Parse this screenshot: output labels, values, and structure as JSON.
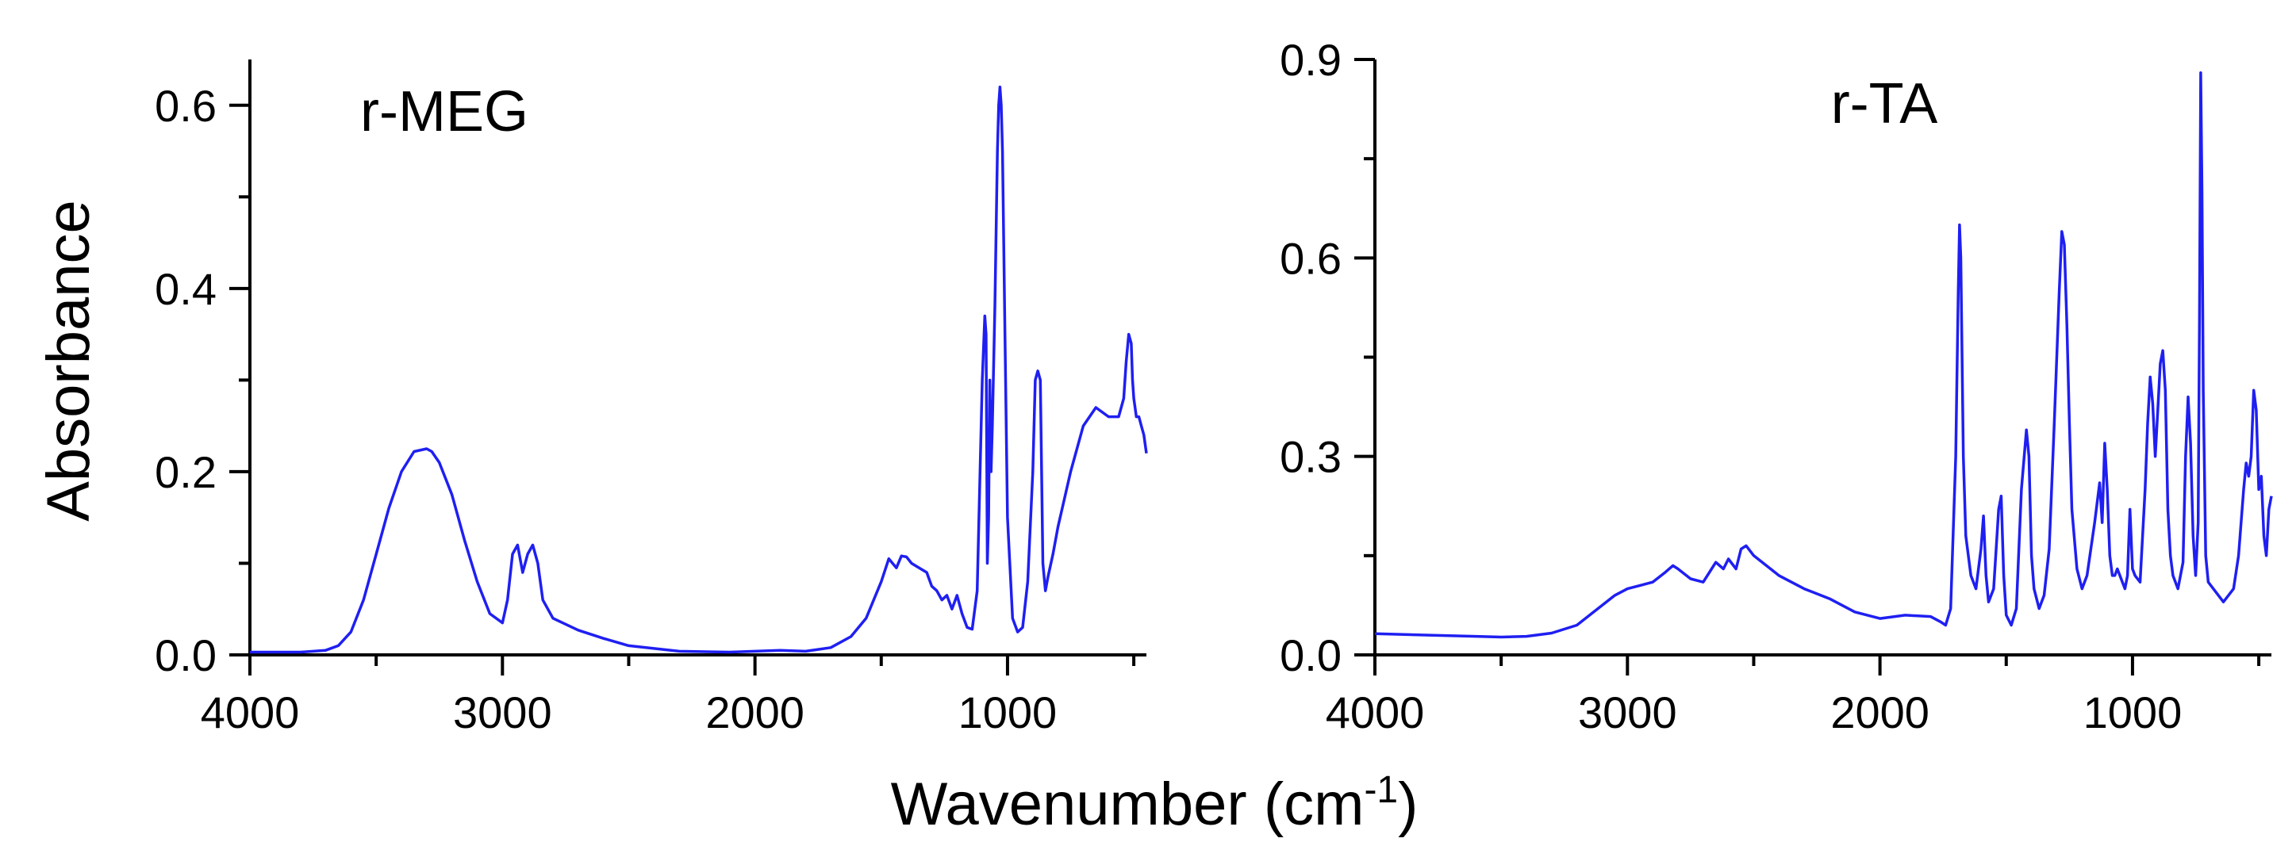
{
  "chart_data": [
    {
      "type": "line",
      "title": "r-MEG",
      "ylabel": "Absorbance",
      "xlim": [
        4000,
        450
      ],
      "ylim": [
        0,
        0.65
      ],
      "x_ticks": [
        4000,
        3000,
        2000,
        1000
      ],
      "y_ticks": [
        0.0,
        0.2,
        0.4,
        0.6
      ],
      "tick_labels_x": [
        "4000",
        "3000",
        "2000",
        "1000"
      ],
      "tick_labels_y": [
        "0.0",
        "0.2",
        "0.4",
        "0.6"
      ],
      "color": "#1f1ff2",
      "series": [
        {
          "x": [
            4000,
            3800,
            3700,
            3650,
            3600,
            3550,
            3500,
            3450,
            3400,
            3350,
            3300,
            3280,
            3250,
            3200,
            3150,
            3100,
            3050,
            3000,
            2980,
            2960,
            2940,
            2920,
            2900,
            2880,
            2860,
            2840,
            2800,
            2700,
            2600,
            2500,
            2300,
            2100,
            1900,
            1800,
            1700,
            1620,
            1560,
            1500,
            1470,
            1440,
            1420,
            1400,
            1380,
            1350,
            1320,
            1300,
            1280,
            1260,
            1240,
            1220,
            1200,
            1180,
            1160,
            1140,
            1120,
            1100,
            1090,
            1085,
            1080,
            1075,
            1070,
            1065,
            1060,
            1050,
            1040,
            1035,
            1030,
            1025,
            1020,
            1010,
            1000,
            980,
            960,
            940,
            920,
            900,
            890,
            880,
            870,
            865,
            860,
            850,
            840,
            820,
            800,
            750,
            700,
            650,
            600,
            560,
            540,
            530,
            520,
            510,
            505,
            500,
            495,
            490,
            480,
            470,
            460,
            450
          ],
          "y": [
            0.003,
            0.003,
            0.005,
            0.01,
            0.025,
            0.06,
            0.11,
            0.16,
            0.2,
            0.222,
            0.225,
            0.222,
            0.21,
            0.175,
            0.125,
            0.08,
            0.045,
            0.035,
            0.06,
            0.11,
            0.12,
            0.09,
            0.11,
            0.12,
            0.1,
            0.06,
            0.04,
            0.027,
            0.018,
            0.01,
            0.004,
            0.003,
            0.005,
            0.004,
            0.008,
            0.02,
            0.04,
            0.08,
            0.105,
            0.095,
            0.108,
            0.107,
            0.1,
            0.095,
            0.09,
            0.075,
            0.07,
            0.06,
            0.065,
            0.05,
            0.065,
            0.045,
            0.03,
            0.028,
            0.07,
            0.3,
            0.37,
            0.35,
            0.1,
            0.15,
            0.3,
            0.2,
            0.25,
            0.38,
            0.55,
            0.6,
            0.62,
            0.6,
            0.55,
            0.35,
            0.15,
            0.04,
            0.025,
            0.03,
            0.08,
            0.2,
            0.3,
            0.31,
            0.3,
            0.2,
            0.1,
            0.07,
            0.085,
            0.11,
            0.14,
            0.2,
            0.25,
            0.27,
            0.26,
            0.26,
            0.28,
            0.32,
            0.35,
            0.34,
            0.3,
            0.28,
            0.27,
            0.26,
            0.26,
            0.25,
            0.24,
            0.22
          ]
        }
      ]
    },
    {
      "type": "line",
      "title": "r-TA",
      "xlim": [
        4000,
        450
      ],
      "ylim": [
        0,
        0.9
      ],
      "x_ticks": [
        4000,
        3000,
        2000,
        1000
      ],
      "y_ticks": [
        0.0,
        0.3,
        0.6,
        0.9
      ],
      "tick_labels_x": [
        "4000",
        "3000",
        "2000",
        "1000"
      ],
      "tick_labels_y": [
        "0.0",
        "0.3",
        "0.6",
        "0.9"
      ],
      "color": "#1f1ff2",
      "series": [
        {
          "x": [
            4000,
            3800,
            3600,
            3500,
            3400,
            3300,
            3200,
            3150,
            3100,
            3050,
            3000,
            2950,
            2900,
            2850,
            2820,
            2800,
            2750,
            2700,
            2650,
            2620,
            2600,
            2570,
            2550,
            2530,
            2500,
            2400,
            2300,
            2200,
            2100,
            2000,
            1900,
            1800,
            1760,
            1740,
            1720,
            1700,
            1690,
            1685,
            1680,
            1675,
            1670,
            1660,
            1640,
            1620,
            1600,
            1590,
            1580,
            1570,
            1550,
            1530,
            1520,
            1510,
            1500,
            1480,
            1460,
            1440,
            1420,
            1410,
            1400,
            1390,
            1370,
            1350,
            1330,
            1310,
            1290,
            1280,
            1270,
            1260,
            1250,
            1240,
            1220,
            1200,
            1180,
            1150,
            1130,
            1120,
            1110,
            1100,
            1090,
            1080,
            1070,
            1060,
            1040,
            1030,
            1020,
            1010,
            1000,
            990,
            970,
            950,
            940,
            930,
            920,
            910,
            900,
            890,
            880,
            870,
            860,
            850,
            840,
            820,
            800,
            790,
            780,
            770,
            760,
            750,
            740,
            735,
            730,
            725,
            720,
            710,
            700,
            680,
            660,
            640,
            620,
            600,
            580,
            560,
            550,
            540,
            530,
            520,
            510,
            500,
            490,
            480,
            470,
            460,
            450
          ],
          "y": [
            0.032,
            0.03,
            0.028,
            0.027,
            0.028,
            0.033,
            0.045,
            0.06,
            0.075,
            0.09,
            0.1,
            0.105,
            0.11,
            0.125,
            0.135,
            0.13,
            0.115,
            0.11,
            0.14,
            0.13,
            0.145,
            0.13,
            0.16,
            0.165,
            0.15,
            0.12,
            0.1,
            0.085,
            0.065,
            0.055,
            0.06,
            0.058,
            0.05,
            0.045,
            0.07,
            0.3,
            0.55,
            0.65,
            0.6,
            0.45,
            0.3,
            0.18,
            0.12,
            0.1,
            0.16,
            0.21,
            0.12,
            0.08,
            0.1,
            0.22,
            0.24,
            0.12,
            0.06,
            0.045,
            0.07,
            0.25,
            0.34,
            0.3,
            0.15,
            0.1,
            0.07,
            0.09,
            0.16,
            0.35,
            0.55,
            0.64,
            0.62,
            0.5,
            0.35,
            0.22,
            0.13,
            0.1,
            0.12,
            0.2,
            0.26,
            0.2,
            0.32,
            0.25,
            0.15,
            0.12,
            0.12,
            0.13,
            0.11,
            0.1,
            0.12,
            0.22,
            0.13,
            0.12,
            0.11,
            0.25,
            0.35,
            0.42,
            0.38,
            0.3,
            0.37,
            0.44,
            0.46,
            0.4,
            0.22,
            0.15,
            0.12,
            0.1,
            0.14,
            0.3,
            0.39,
            0.32,
            0.18,
            0.12,
            0.2,
            0.5,
            0.88,
            0.7,
            0.4,
            0.15,
            0.11,
            0.1,
            0.09,
            0.08,
            0.09,
            0.1,
            0.15,
            0.25,
            0.29,
            0.27,
            0.3,
            0.4,
            0.37,
            0.25,
            0.27,
            0.18,
            0.15,
            0.22,
            0.24
          ]
        }
      ]
    }
  ],
  "figure": {
    "ylabel": "Absorbance",
    "xlabel_main": "Wavenumber (cm",
    "xlabel_sup": "-1",
    "xlabel_close": ")"
  }
}
